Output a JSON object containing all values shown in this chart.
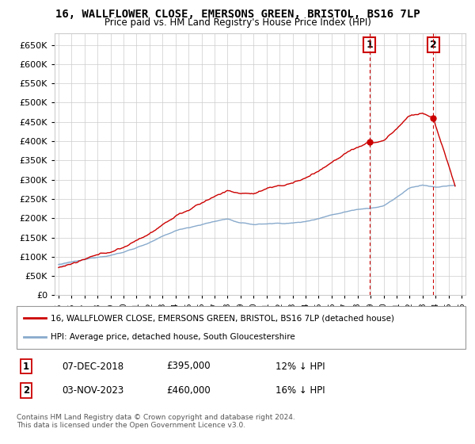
{
  "title": "16, WALLFLOWER CLOSE, EMERSONS GREEN, BRISTOL, BS16 7LP",
  "subtitle": "Price paid vs. HM Land Registry's House Price Index (HPI)",
  "ylim": [
    0,
    680000
  ],
  "yticks": [
    0,
    50000,
    100000,
    150000,
    200000,
    250000,
    300000,
    350000,
    400000,
    450000,
    500000,
    550000,
    600000,
    650000
  ],
  "x_start_year": 1995,
  "x_end_year": 2026,
  "sale1_date": "07-DEC-2018",
  "sale1_price": 395000,
  "sale1_hpi_diff": "12% ↓ HPI",
  "sale1_x": 2018.92,
  "sale2_date": "03-NOV-2023",
  "sale2_price": 460000,
  "sale2_hpi_diff": "16% ↓ HPI",
  "sale2_x": 2023.83,
  "legend1_label": "16, WALLFLOWER CLOSE, EMERSONS GREEN, BRISTOL, BS16 7LP (detached house)",
  "legend2_label": "HPI: Average price, detached house, South Gloucestershire",
  "footer": "Contains HM Land Registry data © Crown copyright and database right 2024.\nThis data is licensed under the Open Government Licence v3.0.",
  "line_color_price": "#cc0000",
  "line_color_hpi": "#88aacc",
  "shade_color": "#ccddf0",
  "vline_color": "#cc0000",
  "background_color": "#ffffff",
  "grid_color": "#cccccc"
}
